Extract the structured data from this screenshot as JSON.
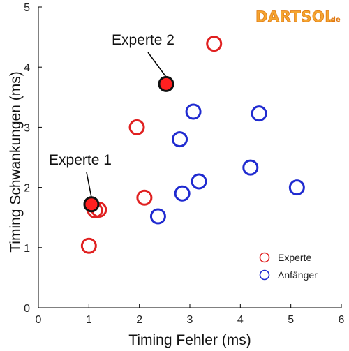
{
  "chart_data": {
    "type": "scatter",
    "xlabel": "Timing Fehler (ms)",
    "ylabel": "Timing Schwankungen (ms)",
    "xlim": [
      0,
      6
    ],
    "ylim": [
      0,
      5
    ],
    "xticks": [
      0,
      1,
      2,
      3,
      4,
      5,
      6
    ],
    "yticks": [
      0,
      1,
      2,
      3,
      4,
      5
    ],
    "grid": false,
    "legend_position": "bottom-right",
    "series": [
      {
        "name": "Experte",
        "color": "#e02020",
        "points": [
          {
            "x": 1.0,
            "y": 1.03
          },
          {
            "x": 1.12,
            "y": 1.62
          },
          {
            "x": 1.2,
            "y": 1.63
          },
          {
            "x": 1.95,
            "y": 3.0
          },
          {
            "x": 2.1,
            "y": 1.83
          },
          {
            "x": 3.48,
            "y": 4.39
          }
        ]
      },
      {
        "name": "Anfänger",
        "color": "#1f2ad0",
        "points": [
          {
            "x": 2.37,
            "y": 1.52
          },
          {
            "x": 2.8,
            "y": 2.8
          },
          {
            "x": 2.85,
            "y": 1.9
          },
          {
            "x": 3.07,
            "y": 3.26
          },
          {
            "x": 3.18,
            "y": 2.1
          },
          {
            "x": 4.2,
            "y": 2.33
          },
          {
            "x": 4.37,
            "y": 3.23
          },
          {
            "x": 5.12,
            "y": 2.0
          }
        ]
      }
    ],
    "highlighted": [
      {
        "label": "Experte 1",
        "x": 1.05,
        "y": 1.72,
        "color": "#ff2020"
      },
      {
        "label": "Experte 2",
        "x": 2.53,
        "y": 3.72,
        "color": "#ff2020"
      }
    ]
  },
  "logo": {
    "text": "DARTSOL",
    "suffix": ".de"
  }
}
